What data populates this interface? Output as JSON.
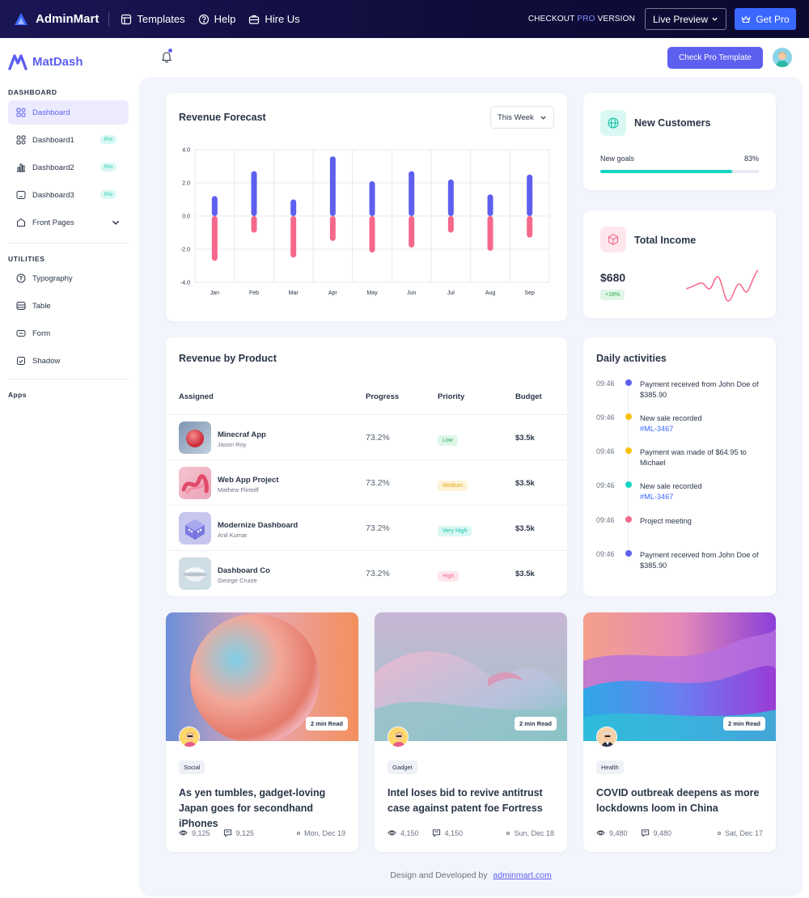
{
  "topbar": {
    "brand": "AdminMart",
    "links": [
      "Templates",
      "Help",
      "Hire Us"
    ],
    "checkout_prefix": "CHECKOUT ",
    "checkout_pro": "PRO",
    "checkout_suffix": " VERSION",
    "live_preview": "Live Preview",
    "get_pro": "Get Pro"
  },
  "sidebar": {
    "brand": "MatDash",
    "dashboard_heading": "DASHBOARD",
    "items": [
      {
        "label": "Dashboard",
        "icon": "apps-icon"
      },
      {
        "label": "Dashboard1",
        "icon": "shapes-icon",
        "tag": "Pro"
      },
      {
        "label": "Dashboard2",
        "icon": "bar-chart-icon",
        "tag": "Pro"
      },
      {
        "label": "Dashboard3",
        "icon": "screen-icon",
        "tag": "Pro"
      },
      {
        "label": "Front Pages",
        "icon": "front-pages-icon"
      }
    ],
    "utilities_heading": "UTILITIES",
    "utilities": [
      {
        "label": "Typography",
        "icon": "typography-icon"
      },
      {
        "label": "Table",
        "icon": "table-icon"
      },
      {
        "label": "Form",
        "icon": "form-icon"
      },
      {
        "label": "Shadow",
        "icon": "shadow-icon"
      }
    ],
    "apps_heading": "Apps"
  },
  "header": {
    "check_pro": "Check Pro Template"
  },
  "revenue_forecast": {
    "title": "Revenue Forecast",
    "period": "This Week"
  },
  "chart_data": {
    "type": "bar",
    "title": "Revenue Forecast",
    "categories": [
      "Jan",
      "Feb",
      "Mar",
      "Apr",
      "May",
      "Jun",
      "Jul",
      "Aug",
      "Sep"
    ],
    "series": [
      {
        "name": "Positive",
        "color": "#5d5fef",
        "values": [
          1.2,
          2.7,
          1.0,
          3.6,
          2.1,
          2.7,
          2.2,
          1.3,
          2.5
        ]
      },
      {
        "name": "Negative",
        "color": "#f6688b",
        "values": [
          -2.7,
          -1.0,
          -2.5,
          -1.5,
          -2.2,
          -1.9,
          -1.0,
          -2.1,
          -1.3
        ]
      }
    ],
    "y_ticks": [
      "4.0",
      "2.0",
      "0.0",
      "-2.0",
      "-4.0"
    ],
    "ylim": [
      -4,
      4
    ],
    "grid": true
  },
  "new_customers": {
    "title": "New Customers",
    "goal_label": "New goals",
    "goal_pct": "83%",
    "goal_value": 83
  },
  "total_income": {
    "title": "Total Income",
    "amount": "$680",
    "change": "+18%"
  },
  "revenue_by_product": {
    "title": "Revenue by Product",
    "columns": [
      "Assigned",
      "Progress",
      "Priority",
      "Budget"
    ],
    "rows": [
      {
        "name": "Minecraf App",
        "person": "Jason Roy",
        "progress": "73.2%",
        "priority": "Low",
        "budget": "$3.5k"
      },
      {
        "name": "Web App Project",
        "person": "Mathew Flintoff",
        "progress": "73.2%",
        "priority": "Medium",
        "budget": "$3.5k"
      },
      {
        "name": "Modernize Dashboard",
        "person": "Anil Kumar",
        "progress": "73.2%",
        "priority": "Very High",
        "budget": "$3.5k"
      },
      {
        "name": "Dashboard Co",
        "person": "George Cruize",
        "progress": "73.2%",
        "priority": "High",
        "budget": "$3.5k"
      }
    ]
  },
  "daily_activities": {
    "title": "Daily activities",
    "items": [
      {
        "time": "09:46",
        "text": "Payment received from John Doe of $385.90",
        "link": "",
        "color": "#5d5fef"
      },
      {
        "time": "09:46",
        "text": "New sale recorded",
        "link": "#ML-3467",
        "color": "#f8c20a"
      },
      {
        "time": "09:46",
        "text": "Payment was made of $64.95 to Michael",
        "link": "",
        "color": "#f8c20a"
      },
      {
        "time": "09:46",
        "text": "New sale recorded",
        "link": "#ML-3467",
        "color": "#15d4c2"
      },
      {
        "time": "09:46",
        "text": "Project meeting",
        "link": "",
        "color": "#f6688b"
      },
      {
        "time": "09:46",
        "text": "Payment received from John Doe of $385.90",
        "link": "",
        "color": "#5d5fef"
      }
    ]
  },
  "blogs": [
    {
      "read": "2 min Read",
      "category": "Social",
      "title": "As yen tumbles, gadget-loving Japan goes for secondhand iPhones",
      "views": "9,125",
      "comments": "9,125",
      "date": "Mon, Dec 19"
    },
    {
      "read": "2 min Read",
      "category": "Gadget",
      "title": "Intel loses bid to revive antitrust case against patent foe Fortress",
      "views": "4,150",
      "comments": "4,150",
      "date": "Sun, Dec 18"
    },
    {
      "read": "2 min Read",
      "category": "Health",
      "title": "COVID outbreak deepens as more lockdowns loom in China",
      "views": "9,480",
      "comments": "9,480",
      "date": "Sat, Dec 17"
    }
  ],
  "footer": {
    "text": "Design and Developed by",
    "link": "adminmart.com"
  }
}
